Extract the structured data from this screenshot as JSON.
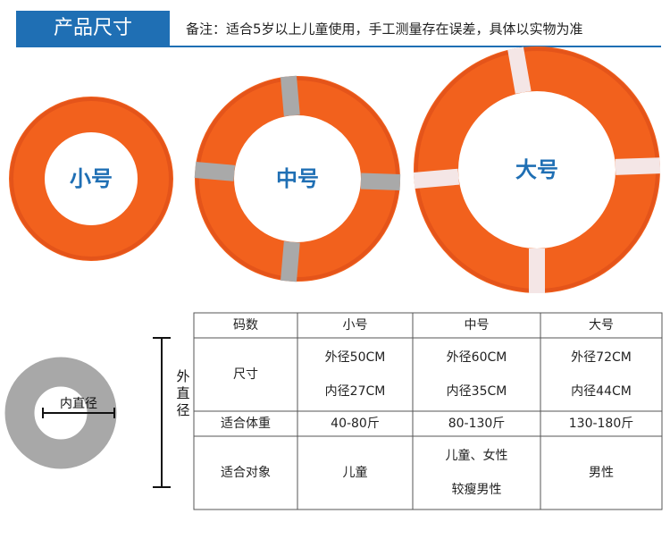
{
  "header": {
    "title": "产品尺寸",
    "note": "备注：适合5岁以上儿童使用，手工测量存在误差，具体以实物为准"
  },
  "rings": [
    {
      "label": "小号"
    },
    {
      "label": "中号"
    },
    {
      "label": "大号"
    }
  ],
  "diagram": {
    "inner_label": "内直径",
    "outer_label": "外直径"
  },
  "table": {
    "header": [
      "码数",
      "小号",
      "中号",
      "大号"
    ],
    "rows": [
      [
        "尺寸",
        [
          "外径50CM",
          "内径27CM"
        ],
        [
          "外径60CM",
          "内径35CM"
        ],
        [
          "外径72CM",
          "内径44CM"
        ]
      ],
      [
        "适合体重",
        "40-80斤",
        "80-130斤",
        "130-180斤"
      ],
      [
        "适合对象",
        "儿童",
        [
          "儿童、女性",
          "较瘦男性"
        ],
        "男性"
      ]
    ]
  }
}
